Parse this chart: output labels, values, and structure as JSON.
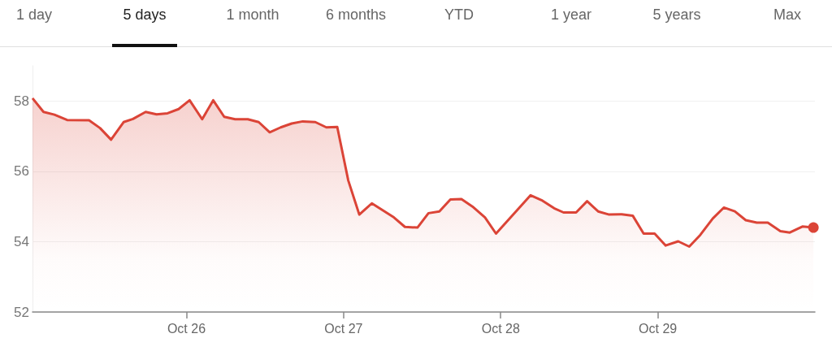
{
  "chart_data": {
    "type": "area",
    "annotations": [
      "1 day",
      "5 days",
      "1 month",
      "6 months",
      "YTD",
      "1 year",
      "5 years",
      "Max"
    ],
    "x": [
      "--10-25T00:29",
      "--10-25T02:10",
      "--10-25T03:50",
      "--10-25T05:46",
      "--10-25T09:07",
      "--10-25T10:48",
      "--10-25T12:29",
      "--10-25T14:24",
      "--10-25T15:50",
      "--10-25T17:46",
      "--10-25T19:26",
      "--10-25T21:07",
      "--10-25T22:48",
      "--10-26T00:29",
      "--10-26T02:24",
      "--10-26T04:05",
      "--10-26T05:46",
      "--10-26T07:26",
      "--10-26T09:22",
      "--10-26T11:02",
      "--10-26T12:43",
      "--10-26T14:24",
      "--10-26T16:05",
      "--10-26T17:46",
      "--10-26T19:41",
      "--10-26T21:22",
      "--10-26T23:02",
      "--10-27T00:43",
      "--10-27T02:24",
      "--10-27T04:19",
      "--10-27T07:41",
      "--10-27T09:22",
      "--10-27T11:17",
      "--10-27T12:58",
      "--10-27T14:38",
      "--10-27T16:19",
      "--10-27T18:00",
      "--10-27T19:41",
      "--10-27T21:36",
      "--10-27T23:17",
      "--10-28T04:34",
      "--10-28T06:14",
      "--10-28T08:10",
      "--10-28T09:36",
      "--10-28T11:31",
      "--10-28T13:12",
      "--10-28T14:53",
      "--10-28T16:34",
      "--10-28T18:29",
      "--10-28T20:10",
      "--10-28T21:50",
      "--10-28T23:31",
      "--10-29T01:12",
      "--10-29T03:07",
      "--10-29T04:48",
      "--10-29T06:29",
      "--10-29T08:24",
      "--10-29T10:05",
      "--10-29T11:46",
      "--10-29T13:26",
      "--10-29T15:07",
      "--10-29T16:48",
      "--10-29T18:43",
      "--10-29T20:10",
      "--10-29T22:05",
      "--10-29T23:46"
    ],
    "series": [
      {
        "color": "#db4437",
        "values": [
          58.08,
          57.69,
          57.61,
          57.46,
          57.45,
          57.23,
          56.9,
          57.4,
          57.49,
          57.69,
          57.62,
          57.65,
          57.77,
          58.02,
          57.48,
          58.02,
          57.55,
          57.48,
          57.48,
          57.4,
          57.11,
          57.25,
          57.36,
          57.42,
          57.4,
          57.25,
          57.26,
          55.74,
          54.77,
          55.09,
          54.69,
          54.42,
          54.4,
          54.81,
          54.86,
          55.2,
          55.21,
          55.0,
          54.69,
          54.23,
          55.32,
          55.18,
          54.95,
          54.83,
          54.83,
          55.15,
          54.86,
          54.77,
          54.78,
          54.74,
          54.23,
          54.23,
          53.89,
          54.01,
          53.86,
          54.19,
          54.66,
          54.97,
          54.86,
          54.61,
          54.54,
          54.54,
          54.3,
          54.26,
          54.43,
          54.4
        ]
      }
    ],
    "xlim": [
      "--10-25T00:29",
      "--10-30T00:00"
    ],
    "xticks": [
      {
        "value": "--10-26",
        "label": "Oct 26"
      },
      {
        "value": "--10-27",
        "label": "Oct 27"
      },
      {
        "value": "--10-28",
        "label": "Oct 28"
      },
      {
        "value": "--10-29",
        "label": "Oct 29"
      }
    ],
    "ylim": [
      52,
      59
    ],
    "yticks": [
      52,
      54,
      56,
      58
    ],
    "grid": "y"
  }
}
